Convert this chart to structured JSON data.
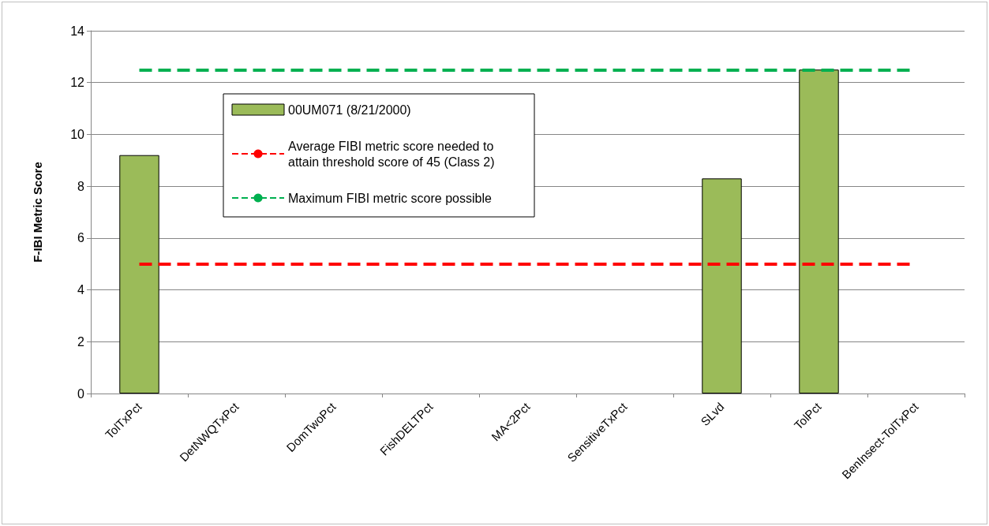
{
  "chart_data": {
    "type": "bar",
    "ylabel": "F-IBI Metric Score",
    "categories": [
      "TolTxPct",
      "DetNWQTxPct",
      "DomTwoPct",
      "FishDELTPct",
      "MA<2Pct",
      "SensitiveTxPct",
      "SLvd",
      "TolPct",
      "BenInsect-TolTxPct"
    ],
    "series": [
      {
        "name": "00UM071 (8/21/2000)",
        "color": "#9bbb59",
        "values": [
          9.2,
          null,
          null,
          null,
          null,
          null,
          8.3,
          12.5,
          null
        ]
      }
    ],
    "ylim": [
      0,
      14
    ],
    "yticks": [
      0,
      2,
      4,
      6,
      8,
      10,
      12,
      14
    ],
    "grid": "y",
    "legend": "top left",
    "ref_lines": [
      {
        "axis": "y",
        "value": 5,
        "label": "Average FIBI metric score needed to attain threshold score of 45 (Class 2)",
        "color": "#ff0000",
        "line_style": "dashed"
      },
      {
        "axis": "y",
        "value": 12.5,
        "label": "Maximum FIBI metric score possible",
        "color": "#00b050",
        "line_style": "dashed"
      }
    ]
  }
}
